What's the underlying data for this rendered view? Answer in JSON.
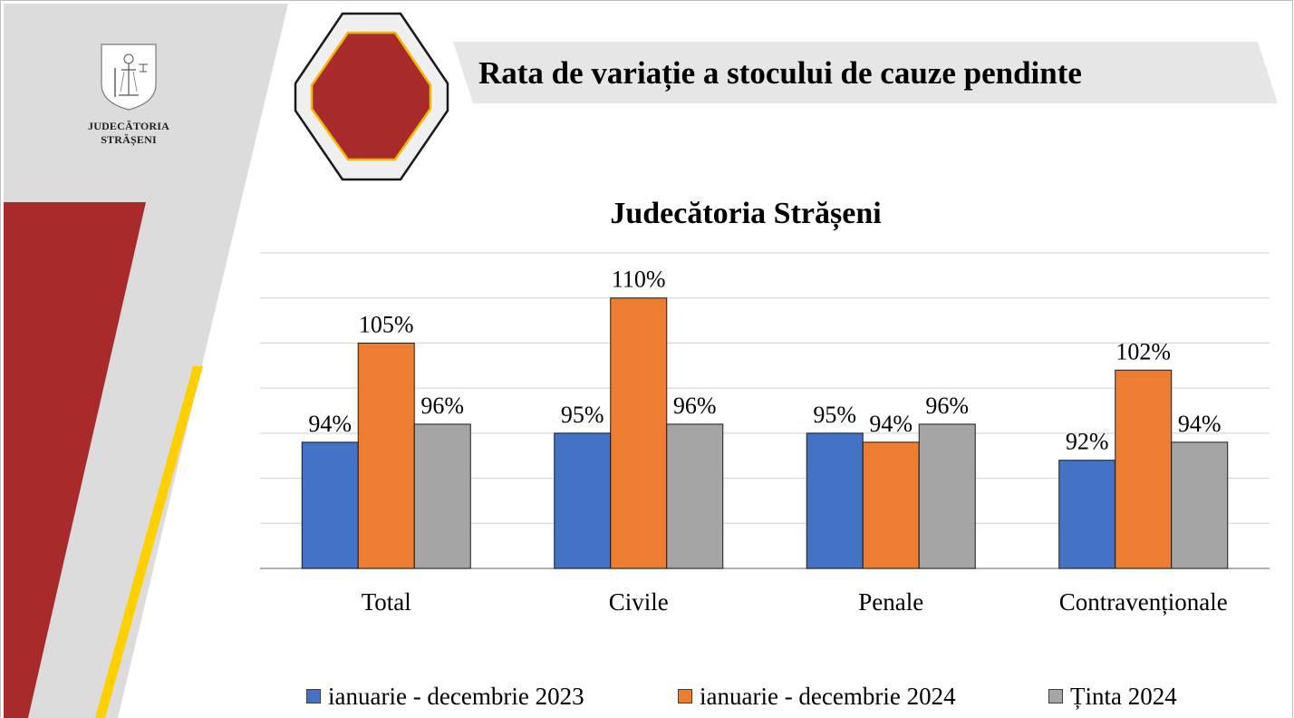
{
  "slide": {
    "title": "Rata de variație a stocului de cauze pendinte",
    "logo_text_line1": "JUDECĂTORIA",
    "logo_text_line2": "STRĂȘENI",
    "logo_icon": "court-emblem-icon",
    "colors": {
      "band_gray": "#dcdcdc",
      "band_red": "#a82a2a",
      "band_yellow": "#ffd000",
      "hexagon_fill": "#a82a2a",
      "hexagon_border": "#f5b800"
    }
  },
  "chart_data": {
    "type": "bar",
    "title": "Judecătoria Strășeni",
    "categories": [
      "Total",
      "Civile",
      "Penale",
      "Contravenționale"
    ],
    "series": [
      {
        "name": "ianuarie - decembrie 2023",
        "color": "#4472c4",
        "values": [
          94,
          95,
          95,
          92
        ],
        "labels": [
          "94%",
          "95%",
          "95%",
          "92%"
        ]
      },
      {
        "name": "ianuarie - decembrie 2024",
        "color": "#ed7d31",
        "values": [
          105,
          110,
          94,
          102
        ],
        "labels": [
          "105%",
          "110%",
          "94%",
          "102%"
        ]
      },
      {
        "name": "Ținta 2024",
        "color": "#a5a5a5",
        "values": [
          96,
          96,
          96,
          94
        ],
        "labels": [
          "96%",
          "96%",
          "96%",
          "94%"
        ]
      }
    ],
    "ylim": [
      80,
      115
    ],
    "grid": true,
    "legend_position": "bottom"
  }
}
